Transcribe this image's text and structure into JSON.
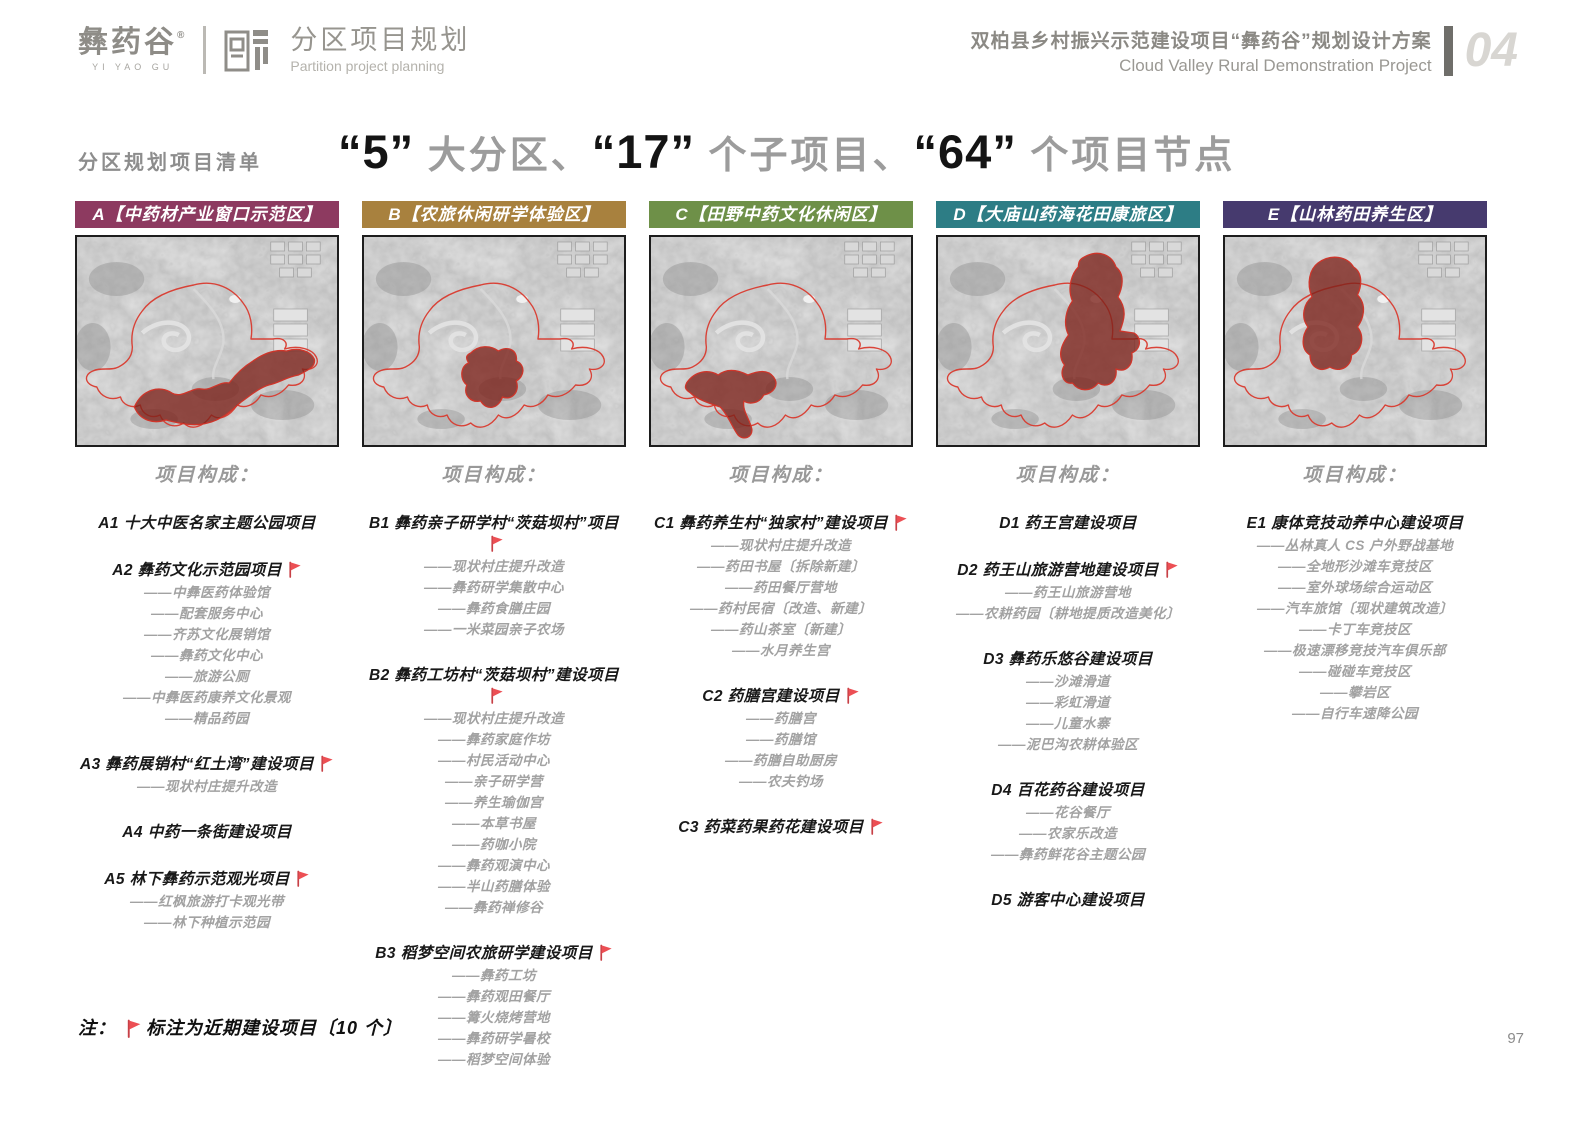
{
  "header": {
    "logo_cn": "彝药谷",
    "logo_mark": "®",
    "logo_en": "YI YAO GU",
    "section_title_cn": "分区项目规划",
    "section_title_en": "Partition project planning",
    "project_title_cn": "双柏县乡村振兴示范建设项目“彝药谷”规划设计方案",
    "project_title_en": "Cloud Valley Rural Demonstration Project",
    "chapter_number": "04"
  },
  "headline": {
    "side_label": "分区规划项目清单",
    "segments": [
      {
        "text": "“5”",
        "emphasis": true
      },
      {
        "text": " 大分区、",
        "emphasis": false
      },
      {
        "text": "“17”",
        "emphasis": true
      },
      {
        "text": " 个子项目、",
        "emphasis": false
      },
      {
        "text": "“64”",
        "emphasis": true
      },
      {
        "text": " 个项目节点",
        "emphasis": false
      }
    ]
  },
  "zone_section_label": "项目构成：",
  "zones": [
    {
      "id": "A",
      "label": "A【中药材产业窗口示范区】",
      "color": "#8d3a60",
      "projects": [
        {
          "title": "A1 十大中医名家主题公园项目",
          "flag": false,
          "subitems": []
        },
        {
          "title": "A2 彝药文化示范园项目",
          "flag": true,
          "subitems": [
            "——中彝医药体验馆",
            "——配套服务中心",
            "——齐苏文化展销馆",
            "——彝药文化中心",
            "——旅游公厕",
            "——中彝医药康养文化景观",
            "——精品药园"
          ]
        },
        {
          "title": "A3 彝药展销村“红土湾”建设项目",
          "flag": true,
          "subitems": [
            "——现状村庄提升改造"
          ]
        },
        {
          "title": "A4 中药一条街建设项目",
          "flag": false,
          "subitems": []
        },
        {
          "title": "A5 林下彝药示范观光项目",
          "flag": true,
          "subitems": [
            "——红枫旅游打卡观光带",
            "——林下种植示范园"
          ]
        }
      ]
    },
    {
      "id": "B",
      "label": "B【农旅休闲研学体验区】",
      "color": "#a8813e",
      "projects": [
        {
          "title": "B1 彝药亲子研学村“茨菇坝村”项目",
          "flag": true,
          "subitems": [
            "——现状村庄提升改造",
            "——彝药研学集散中心",
            "——彝药食膳庄园",
            "——一米菜园亲子农场"
          ]
        },
        {
          "title": "B2 彝药工坊村“茨菇坝村”建设项目",
          "flag": true,
          "subitems": [
            "——现状村庄提升改造",
            "——彝药家庭作坊",
            "——村民活动中心",
            "——亲子研学营",
            "——养生瑜伽宫",
            "——本草书屋",
            "——药咖小院",
            "——彝药观演中心",
            "——半山药膳体验",
            "——彝药禅修谷"
          ]
        },
        {
          "title": "B3 稻梦空间农旅研学建设项目",
          "flag": true,
          "subitems": [
            "——彝药工坊",
            "——彝药观田餐厅",
            "——篝火烧烤营地",
            "——彝药研学暑校",
            "——稻梦空间体验"
          ]
        }
      ]
    },
    {
      "id": "C",
      "label": "C【田野中药文化休闲区】",
      "color": "#6e9048",
      "projects": [
        {
          "title": "C1 彝药养生村“独家村”建设项目",
          "flag": true,
          "subitems": [
            "——现状村庄提升改造",
            "——药田书屋〔拆除新建〕",
            "——药田餐厅营地",
            "——药村民宿〔改造、新建〕",
            "——药山茶室〔新建〕",
            "——水月养生宫"
          ]
        },
        {
          "title": "C2 药膳宫建设项目",
          "flag": true,
          "subitems": [
            "——药膳宫",
            "——药膳馆",
            "——药膳自助厨房",
            "——农夫钓场"
          ]
        },
        {
          "title": "C3 药菜药果药花建设项目",
          "flag": true,
          "subitems": []
        }
      ]
    },
    {
      "id": "D",
      "label": "D【大庙山药海花田康旅区】",
      "color": "#2d7d85",
      "projects": [
        {
          "title": "D1 药王宫建设项目",
          "flag": false,
          "subitems": []
        },
        {
          "title": "D2 药王山旅游营地建设项目",
          "flag": true,
          "subitems": [
            "——药王山旅游营地",
            "——农耕药园〔耕地提质改造美化〕"
          ]
        },
        {
          "title": "D3 彝药乐悠谷建设项目",
          "flag": false,
          "subitems": [
            "——沙滩滑道",
            "——彩虹滑道",
            "——儿童水寨",
            "——泥巴沟农耕体验区"
          ]
        },
        {
          "title": "D4 百花药谷建设项目",
          "flag": false,
          "subitems": [
            "——花谷餐厅",
            "——农家乐改造",
            "——彝药鲜花谷主题公园"
          ]
        },
        {
          "title": "D5 游客中心建设项目",
          "flag": false,
          "subitems": []
        }
      ]
    },
    {
      "id": "E",
      "label": "E【山林药田养生区】",
      "color": "#463a6e",
      "projects": [
        {
          "title": "E1  康体竞技动养中心建设项目",
          "flag": false,
          "subitems": [
            "——丛林真人 CS 户外野战基地",
            "——全地形沙滩车竞技区",
            "——室外球场综合运动区",
            "——汽车旅馆〔现状建筑改造〕",
            "——卡丁车竞技区",
            "——极速漂移竞技汽车俱乐部",
            "——碰碰车竞技区",
            "——攀岩区",
            "——自行车速降公园"
          ]
        }
      ]
    }
  ],
  "note": {
    "prefix": "注：",
    "text": "标注为近期建设项目〔10 个〕"
  },
  "page_number": "97",
  "colors": {
    "flag": "#ec4f54",
    "map_boundary": "#d93a2e",
    "map_highlight": "#7c211a"
  }
}
